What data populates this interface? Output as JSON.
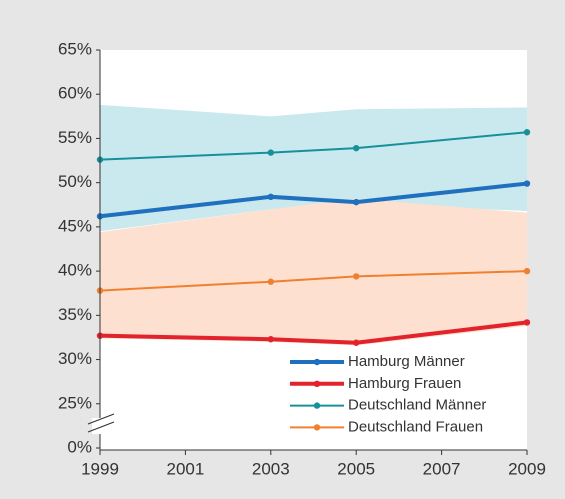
{
  "chart_data": {
    "type": "line",
    "x": [
      1999,
      2003,
      2005,
      2009
    ],
    "xlim": [
      1999,
      2009
    ],
    "xticks": [
      1999,
      2001,
      2003,
      2005,
      2007,
      2009
    ],
    "ylim": [
      0,
      65
    ],
    "axis_break": [
      0,
      20
    ],
    "yticks": [
      {
        "value": 0,
        "label": "0%"
      },
      {
        "value": 25,
        "label": "25%"
      },
      {
        "value": 30,
        "label": "30%"
      },
      {
        "value": 35,
        "label": "35%"
      },
      {
        "value": 40,
        "label": "40%"
      },
      {
        "value": 45,
        "label": "45%"
      },
      {
        "value": 50,
        "label": "50%"
      },
      {
        "value": 55,
        "label": "55%"
      },
      {
        "value": 60,
        "label": "60%"
      },
      {
        "value": 65,
        "label": "65%"
      }
    ],
    "legend": "lower right",
    "bands": [
      {
        "color": "#c9e9ee",
        "lower": [
          44.5,
          47.0,
          47.6,
          46.8
        ],
        "upper": [
          58.8,
          57.5,
          58.3,
          58.5
        ]
      },
      {
        "color": "#fde0cf",
        "lower": [
          32.4,
          32.0,
          31.6,
          33.8
        ],
        "upper": [
          44.4,
          47.0,
          48.2,
          46.6
        ]
      }
    ],
    "series": [
      {
        "name": "Hamburg Männer",
        "color": "#1f70bf",
        "width": 4,
        "values": [
          46.2,
          48.4,
          47.8,
          49.9
        ]
      },
      {
        "name": "Hamburg Frauen",
        "color": "#e3232c",
        "width": 4,
        "values": [
          32.7,
          32.3,
          31.9,
          34.2
        ]
      },
      {
        "name": "Deutschland Männer",
        "color": "#17909b",
        "width": 2,
        "values": [
          52.6,
          53.4,
          53.9,
          55.7
        ]
      },
      {
        "name": "Deutschland Frauen",
        "color": "#f0802f",
        "width": 2,
        "values": [
          37.8,
          38.8,
          39.4,
          40.0
        ]
      }
    ]
  }
}
